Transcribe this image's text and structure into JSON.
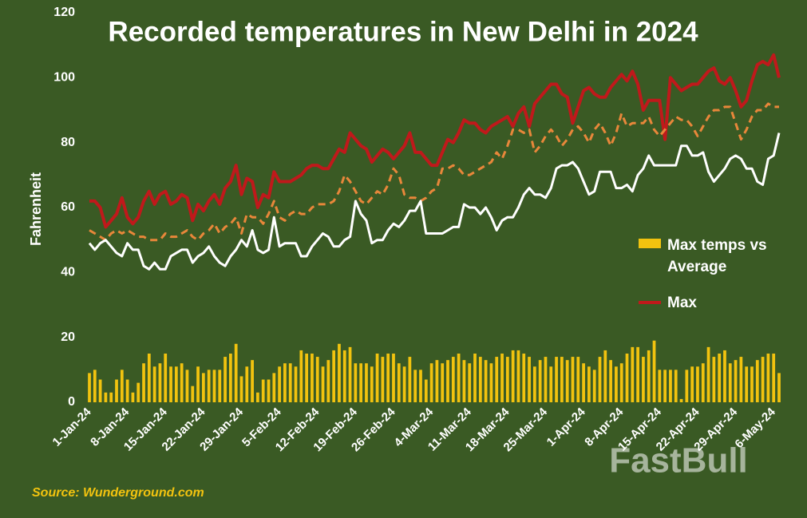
{
  "chart_data": {
    "type": "combo",
    "title": "Recorded temperatures in New Delhi in 2024",
    "y_label": "Fahrenheit",
    "source": "Source: Wunderground.com",
    "watermark": "FastBull",
    "ylim": [
      0,
      120
    ],
    "yticks": [
      0,
      20,
      40,
      60,
      80,
      100,
      120
    ],
    "categories": [
      "1-Jan-24",
      null,
      null,
      null,
      null,
      null,
      null,
      "8-Jan-24",
      null,
      null,
      null,
      null,
      null,
      null,
      "15-Jan-24",
      null,
      null,
      null,
      null,
      null,
      null,
      "22-Jan-24",
      null,
      null,
      null,
      null,
      null,
      null,
      "29-Jan-24",
      null,
      null,
      null,
      null,
      null,
      null,
      "5-Feb-24",
      null,
      null,
      null,
      null,
      null,
      null,
      "12-Feb-24",
      null,
      null,
      null,
      null,
      null,
      null,
      "19-Feb-24",
      null,
      null,
      null,
      null,
      null,
      null,
      "26-Feb-24",
      null,
      null,
      null,
      null,
      null,
      null,
      "4-Mar-24",
      null,
      null,
      null,
      null,
      null,
      null,
      "11-Mar-24",
      null,
      null,
      null,
      null,
      null,
      null,
      "18-Mar-24",
      null,
      null,
      null,
      null,
      null,
      null,
      "25-Mar-24",
      null,
      null,
      null,
      null,
      null,
      null,
      "1-Apr-24",
      null,
      null,
      null,
      null,
      null,
      null,
      "8-Apr-24",
      null,
      null,
      null,
      null,
      null,
      null,
      "15-Apr-24",
      null,
      null,
      null,
      null,
      null,
      null,
      "22-Apr-24",
      null,
      null,
      null,
      null,
      null,
      null,
      "29-Apr-24",
      null,
      null,
      null,
      null,
      null,
      null,
      "6-May-24",
      null
    ],
    "series": [
      {
        "name": "Max temps vs Average",
        "type": "bar",
        "color": "#f2c30f",
        "values": [
          9,
          10,
          7,
          3,
          3,
          7,
          10,
          7,
          3,
          6,
          12,
          15,
          11,
          12,
          15,
          11,
          11,
          12,
          10,
          5,
          11,
          9,
          10,
          10,
          10,
          14,
          15,
          18,
          8,
          11,
          13,
          3,
          7,
          7,
          9,
          11,
          12,
          12,
          11,
          16,
          15,
          15,
          14,
          11,
          13,
          16,
          18,
          16,
          17,
          12,
          12,
          12,
          11,
          15,
          14,
          15,
          15,
          12,
          11,
          14,
          10,
          10,
          7,
          12,
          13,
          12,
          13,
          14,
          15,
          13,
          12,
          15,
          14,
          13,
          12,
          14,
          15,
          14,
          16,
          16,
          15,
          14,
          11,
          13,
          14,
          11,
          14,
          14,
          13,
          14,
          14,
          12,
          11,
          10,
          14,
          16,
          13,
          11,
          12,
          15,
          17,
          17,
          14,
          16,
          19,
          10,
          10,
          10,
          10,
          1,
          10,
          11,
          11,
          12,
          17,
          14,
          15,
          16,
          12,
          13,
          14,
          11,
          11,
          13,
          14,
          15,
          15,
          9
        ]
      },
      {
        "name": "Max",
        "type": "line",
        "color": "#c0191b",
        "values": [
          62,
          62,
          60,
          54,
          56,
          58,
          63,
          57,
          55,
          57,
          62,
          65,
          61,
          64,
          65,
          61,
          62,
          64,
          63,
          56,
          61,
          59,
          62,
          64,
          61,
          66,
          68,
          73,
          64,
          69,
          68,
          60,
          64,
          63,
          71,
          68,
          68,
          68,
          69,
          70,
          72,
          73,
          73,
          72,
          72,
          75,
          78,
          77,
          83,
          81,
          79,
          78,
          74,
          76,
          78,
          77,
          75,
          77,
          79,
          83,
          77,
          77,
          75,
          73,
          73,
          77,
          81,
          80,
          83,
          87,
          86,
          86,
          84,
          83,
          85,
          86,
          87,
          88,
          85,
          89,
          91,
          85,
          92,
          94,
          96,
          98,
          98,
          95,
          94,
          86,
          91,
          96,
          97,
          95,
          94,
          94,
          97,
          99,
          101,
          99,
          102,
          98,
          90,
          93,
          93,
          93,
          81,
          100,
          98,
          96,
          97,
          98,
          98,
          100,
          102,
          103,
          99,
          98,
          100,
          96,
          91,
          93,
          99,
          104,
          105,
          104,
          107,
          100
        ]
      },
      {
        "type": "line",
        "dash": true,
        "color": "#e8873a",
        "values": [
          53,
          52,
          51,
          50,
          52,
          53,
          52,
          53,
          52,
          51,
          51,
          50,
          50,
          50,
          52,
          51,
          51,
          52,
          53,
          51,
          50,
          52,
          53,
          55,
          52,
          54,
          55,
          57,
          52,
          58,
          57,
          57,
          55,
          58,
          62,
          57,
          56,
          58,
          59,
          58,
          58,
          60,
          61,
          61,
          61,
          62,
          65,
          70,
          68,
          65,
          62,
          61,
          63,
          65,
          64,
          67,
          72,
          70,
          64,
          63,
          63,
          62,
          63,
          65,
          66,
          72,
          72,
          73,
          72,
          70,
          70,
          71,
          72,
          73,
          74,
          77,
          75,
          79,
          84,
          84,
          83,
          84,
          77,
          79,
          82,
          84,
          82,
          79,
          81,
          84,
          85,
          83,
          80,
          84,
          86,
          83,
          79,
          83,
          89,
          85,
          86,
          86,
          86,
          88,
          84,
          82,
          84,
          86,
          88,
          87,
          87,
          85,
          82,
          85,
          88,
          90,
          90,
          91,
          91,
          86,
          81,
          84,
          88,
          90,
          90,
          92,
          91,
          91
        ]
      },
      {
        "type": "line",
        "color": "#ffffff",
        "values": [
          49,
          47,
          49,
          50,
          48,
          46,
          45,
          49,
          47,
          47,
          42,
          41,
          43,
          41,
          41,
          45,
          46,
          47,
          47,
          43,
          45,
          46,
          48,
          45,
          43,
          42,
          45,
          47,
          50,
          48,
          53,
          47,
          46,
          47,
          57,
          48,
          49,
          49,
          49,
          45,
          45,
          48,
          50,
          52,
          51,
          48,
          48,
          50,
          51,
          62,
          58,
          56,
          49,
          50,
          50,
          53,
          55,
          54,
          56,
          59,
          59,
          62,
          52,
          52,
          52,
          52,
          53,
          54,
          54,
          61,
          60,
          60,
          58,
          60,
          57,
          53,
          56,
          57,
          57,
          60,
          64,
          66,
          64,
          64,
          63,
          66,
          72,
          73,
          73,
          74,
          72,
          68,
          64,
          65,
          71,
          71,
          71,
          66,
          66,
          67,
          65,
          70,
          72,
          76,
          73,
          73,
          73,
          73,
          73,
          79,
          79,
          76,
          76,
          77,
          71,
          68,
          70,
          72,
          75,
          76,
          75,
          72,
          72,
          68,
          67,
          75,
          76,
          83
        ]
      }
    ]
  }
}
